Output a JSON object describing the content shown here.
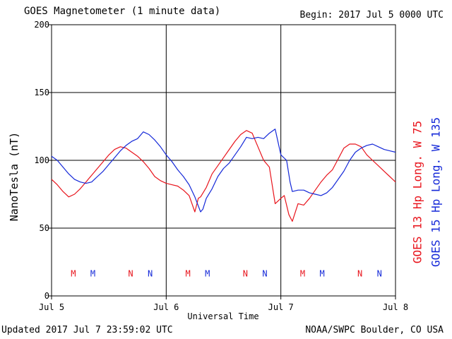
{
  "header": {
    "title": "GOES Magnetometer (1 minute data)",
    "begin": "Begin:  2017 Jul 5 0000 UTC"
  },
  "footer": {
    "updated": "Updated 2017 Jul  7 23:59:02 UTC",
    "credit": "NOAA/SWPC Boulder, CO USA"
  },
  "colors": {
    "goes13": "#e8141c",
    "goes15": "#1428d8",
    "grid": "#000000"
  },
  "chart_data": {
    "type": "line",
    "title": "GOES Magnetometer (1 minute data)",
    "xlabel": "Universal Time",
    "ylabel": "NanoTesla (nT)",
    "xlim": [
      0,
      3
    ],
    "ylim": [
      0,
      200
    ],
    "yticks": [
      0,
      50,
      100,
      150,
      200
    ],
    "xticks": [
      {
        "x": 0,
        "label": "Jul 5"
      },
      {
        "x": 1,
        "label": "Jul 6"
      },
      {
        "x": 2,
        "label": "Jul 7"
      },
      {
        "x": 3,
        "label": "Jul 8"
      }
    ],
    "grid": true,
    "series": [
      {
        "name": "GOES 13 Hp  Long. W 75",
        "color": "#e8141c",
        "x": [
          0.0,
          0.05,
          0.1,
          0.15,
          0.2,
          0.25,
          0.3,
          0.35,
          0.4,
          0.45,
          0.5,
          0.55,
          0.6,
          0.65,
          0.7,
          0.75,
          0.8,
          0.85,
          0.9,
          0.95,
          1.0,
          1.05,
          1.1,
          1.15,
          1.2,
          1.25,
          1.28,
          1.3,
          1.35,
          1.4,
          1.45,
          1.5,
          1.55,
          1.6,
          1.65,
          1.7,
          1.75,
          1.8,
          1.85,
          1.9,
          1.95,
          2.0,
          2.03,
          2.07,
          2.1,
          2.15,
          2.2,
          2.25,
          2.3,
          2.35,
          2.4,
          2.45,
          2.5,
          2.55,
          2.6,
          2.65,
          2.7,
          2.75,
          2.8,
          2.85,
          2.9,
          2.95,
          3.0
        ],
        "y": [
          86,
          82,
          77,
          73,
          75,
          79,
          84,
          89,
          94,
          99,
          104,
          108,
          110,
          109,
          106,
          103,
          99,
          94,
          88,
          85,
          83,
          82,
          81,
          78,
          74,
          62,
          72,
          73,
          80,
          90,
          96,
          102,
          108,
          114,
          119,
          122,
          120,
          110,
          100,
          95,
          68,
          72,
          74,
          60,
          55,
          68,
          67,
          72,
          78,
          84,
          89,
          93,
          101,
          109,
          112,
          112,
          110,
          104,
          100,
          96,
          92,
          88,
          84
        ]
      },
      {
        "name": "GOES 15 Hp  Long. W 135",
        "color": "#1428d8",
        "x": [
          0.0,
          0.05,
          0.1,
          0.15,
          0.2,
          0.25,
          0.3,
          0.35,
          0.4,
          0.45,
          0.5,
          0.55,
          0.6,
          0.65,
          0.7,
          0.75,
          0.8,
          0.85,
          0.9,
          0.95,
          1.0,
          1.05,
          1.1,
          1.15,
          1.2,
          1.25,
          1.3,
          1.32,
          1.35,
          1.4,
          1.45,
          1.5,
          1.55,
          1.6,
          1.65,
          1.7,
          1.75,
          1.8,
          1.85,
          1.9,
          1.95,
          2.0,
          2.05,
          2.08,
          2.1,
          2.15,
          2.2,
          2.25,
          2.3,
          2.35,
          2.4,
          2.45,
          2.5,
          2.55,
          2.6,
          2.65,
          2.7,
          2.75,
          2.8,
          2.85,
          2.9,
          2.95,
          3.0
        ],
        "y": [
          103,
          100,
          95,
          90,
          86,
          84,
          83,
          84,
          88,
          92,
          97,
          102,
          107,
          111,
          114,
          116,
          121,
          119,
          115,
          110,
          104,
          99,
          93,
          88,
          82,
          73,
          62,
          64,
          72,
          79,
          88,
          94,
          98,
          104,
          110,
          117,
          116,
          117,
          116,
          120,
          123,
          104,
          100,
          84,
          77,
          78,
          78,
          76,
          75,
          74,
          76,
          80,
          86,
          92,
          100,
          106,
          109,
          111,
          112,
          110,
          108,
          107,
          106
        ]
      }
    ],
    "markers": [
      {
        "x": 0.19,
        "label": "M",
        "series": 0
      },
      {
        "x": 0.36,
        "label": "M",
        "series": 1
      },
      {
        "x": 0.69,
        "label": "N",
        "series": 0
      },
      {
        "x": 0.86,
        "label": "N",
        "series": 1
      },
      {
        "x": 1.19,
        "label": "M",
        "series": 0
      },
      {
        "x": 1.36,
        "label": "M",
        "series": 1
      },
      {
        "x": 1.69,
        "label": "N",
        "series": 0
      },
      {
        "x": 1.86,
        "label": "N",
        "series": 1
      },
      {
        "x": 2.19,
        "label": "M",
        "series": 0
      },
      {
        "x": 2.36,
        "label": "M",
        "series": 1
      },
      {
        "x": 2.69,
        "label": "N",
        "series": 0
      },
      {
        "x": 2.86,
        "label": "N",
        "series": 1
      }
    ],
    "marker_y": 17
  }
}
